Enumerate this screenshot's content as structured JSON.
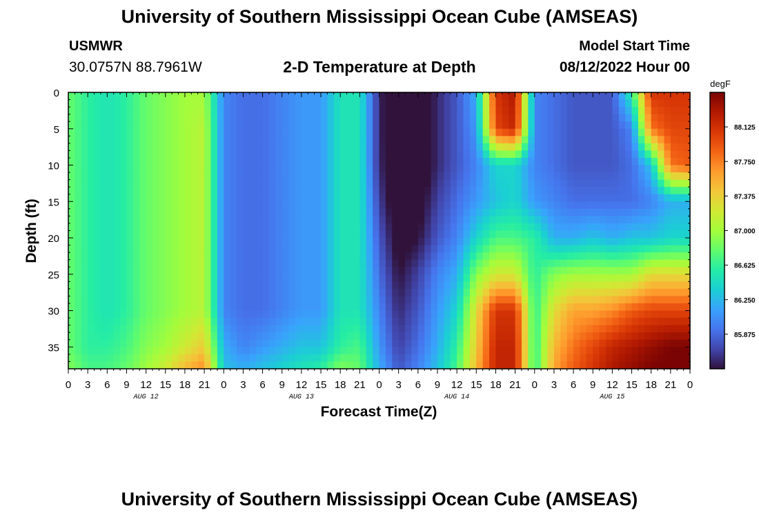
{
  "header": {
    "title": "University of Southern Mississippi Ocean Cube (AMSEAS)",
    "station": "USMWR",
    "coords": "30.0757N  88.7961W",
    "subtitle": "2-D Temperature at Depth",
    "model_start_label": "Model Start Time",
    "model_start_value": "08/12/2022 Hour 00",
    "footer_title": "University of Southern Mississippi Ocean Cube (AMSEAS)"
  },
  "colorbar": {
    "unit": "degF",
    "ticks": [
      88.125,
      87.75,
      87.375,
      87.0,
      86.625,
      86.25,
      85.875
    ],
    "tick_labels": [
      "88.125",
      "87.750",
      "87.375",
      "87.000",
      "86.625",
      "86.250",
      "85.875"
    ],
    "min": 85.5,
    "max": 88.5,
    "colors": [
      "#30123b",
      "#4145ab",
      "#4675ed",
      "#39a2fc",
      "#1bcfd4",
      "#24eca6",
      "#61fc6c",
      "#a4fc3b",
      "#d1e834",
      "#f3c63a",
      "#fe9b2d",
      "#f36315",
      "#d93806",
      "#b11901",
      "#7a0403"
    ]
  },
  "chart_data": {
    "type": "heatmap",
    "xlabel": "Forecast Time(Z)",
    "ylabel": "Depth (ft)",
    "xlim": [
      0,
      96
    ],
    "ylim": [
      38,
      0
    ],
    "x_tick_labels": [
      "0",
      "3",
      "6",
      "9",
      "12",
      "15",
      "18",
      "21",
      "0",
      "3",
      "6",
      "9",
      "12",
      "15",
      "18",
      "21",
      "0",
      "3",
      "6",
      "9",
      "12",
      "15",
      "18",
      "21",
      "0",
      "3",
      "6",
      "9",
      "12",
      "15",
      "18",
      "21",
      "0"
    ],
    "y_ticks": [
      0,
      5,
      10,
      15,
      20,
      25,
      30,
      35
    ],
    "y_tick_labels": [
      "0",
      "5",
      "10",
      "15",
      "20",
      "25",
      "30",
      "35"
    ],
    "day_labels": [
      "AUG 12",
      "AUG 13",
      "AUG 14",
      "AUG 15"
    ],
    "day_label_hours": [
      12,
      36,
      60,
      84
    ],
    "depths_ft": [
      0,
      5,
      10,
      15,
      20,
      25,
      30,
      35,
      38
    ],
    "hours": [
      0,
      3,
      6,
      9,
      12,
      15,
      18,
      21,
      24,
      27,
      30,
      33,
      36,
      39,
      42,
      45,
      48,
      51,
      54,
      57,
      60,
      63,
      66,
      69,
      72,
      75,
      78,
      81,
      84,
      87,
      90,
      93,
      96
    ],
    "temperature_degF": [
      [
        86.8,
        86.6,
        86.5,
        86.6,
        86.8,
        86.9,
        87.0,
        87.0,
        86.0,
        85.9,
        85.9,
        86.0,
        86.1,
        86.1,
        86.5,
        86.5,
        85.6,
        85.2,
        85.3,
        85.6,
        85.8,
        86.2,
        88.1,
        88.3,
        86.0,
        85.9,
        85.8,
        85.8,
        85.8,
        86.6,
        88.1,
        88.1,
        88.1
      ],
      [
        86.8,
        86.6,
        86.5,
        86.6,
        86.8,
        86.9,
        87.0,
        87.1,
        86.0,
        85.9,
        85.9,
        86.0,
        86.1,
        86.1,
        86.5,
        86.5,
        85.6,
        85.2,
        85.3,
        85.6,
        85.8,
        86.1,
        88.0,
        88.2,
        86.0,
        85.9,
        85.8,
        85.8,
        85.8,
        86.0,
        87.8,
        88.0,
        88.0
      ],
      [
        86.8,
        86.6,
        86.5,
        86.6,
        86.8,
        86.9,
        87.0,
        87.1,
        86.0,
        85.9,
        85.9,
        86.0,
        86.1,
        86.1,
        86.5,
        86.5,
        85.6,
        85.3,
        85.3,
        85.6,
        85.8,
        86.0,
        86.4,
        86.4,
        86.0,
        85.9,
        85.8,
        85.8,
        85.8,
        85.9,
        86.3,
        87.8,
        87.9
      ],
      [
        86.8,
        86.6,
        86.5,
        86.6,
        86.8,
        86.9,
        87.0,
        87.1,
        86.0,
        85.9,
        85.9,
        86.0,
        86.1,
        86.1,
        86.5,
        86.5,
        85.7,
        85.3,
        85.4,
        85.7,
        85.9,
        86.1,
        86.3,
        86.4,
        86.1,
        86.0,
        85.9,
        85.9,
        85.9,
        85.9,
        86.0,
        86.2,
        86.2
      ],
      [
        86.8,
        86.6,
        86.5,
        86.6,
        86.8,
        86.9,
        87.0,
        87.1,
        86.0,
        85.9,
        85.9,
        86.0,
        86.1,
        86.1,
        86.5,
        86.5,
        85.8,
        85.4,
        85.5,
        85.8,
        86.0,
        86.4,
        86.7,
        86.7,
        86.6,
        86.2,
        86.2,
        86.3,
        86.2,
        86.3,
        86.3,
        86.4,
        86.4
      ],
      [
        86.8,
        86.6,
        86.5,
        86.6,
        86.8,
        86.9,
        87.0,
        87.1,
        86.0,
        85.9,
        85.9,
        86.0,
        86.1,
        86.1,
        86.5,
        86.5,
        85.9,
        85.5,
        85.7,
        86.0,
        86.2,
        86.9,
        87.2,
        87.2,
        86.6,
        86.9,
        87.0,
        87.0,
        87.0,
        87.0,
        87.3,
        87.3,
        87.3
      ],
      [
        86.8,
        86.6,
        86.5,
        86.6,
        86.8,
        86.9,
        87.0,
        87.1,
        86.0,
        85.9,
        85.9,
        86.0,
        86.1,
        86.1,
        86.5,
        86.5,
        86.0,
        85.6,
        85.8,
        86.1,
        86.4,
        87.3,
        88.1,
        88.1,
        86.6,
        87.3,
        87.6,
        87.6,
        87.7,
        87.9,
        88.0,
        88.0,
        88.0
      ],
      [
        86.8,
        86.6,
        86.6,
        86.7,
        86.9,
        87.0,
        87.2,
        87.4,
        86.2,
        86.0,
        86.1,
        86.2,
        86.3,
        86.3,
        86.6,
        86.7,
        86.1,
        85.7,
        85.9,
        86.2,
        86.6,
        87.4,
        88.2,
        88.2,
        86.6,
        87.5,
        87.8,
        88.0,
        88.2,
        88.3,
        88.4,
        88.5,
        88.5
      ],
      [
        86.9,
        86.7,
        86.7,
        86.8,
        87.0,
        87.2,
        87.5,
        87.7,
        86.3,
        86.2,
        86.3,
        86.4,
        86.5,
        86.6,
        86.9,
        86.8,
        86.2,
        85.8,
        86.0,
        86.3,
        86.7,
        87.5,
        88.2,
        88.2,
        86.6,
        87.6,
        87.9,
        88.1,
        88.3,
        88.4,
        88.5,
        88.5,
        88.5
      ]
    ]
  }
}
